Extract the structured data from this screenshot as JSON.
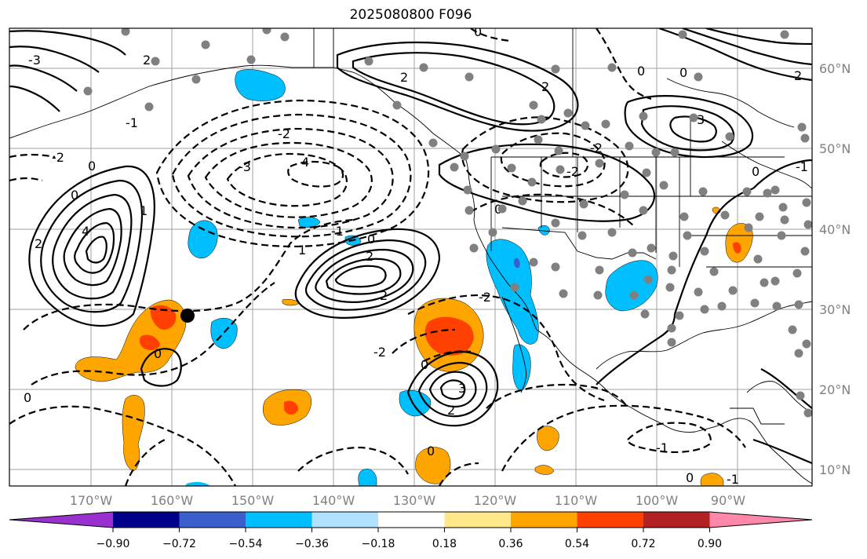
{
  "title": "2025080800 F096",
  "lat_labels": [
    "60°N",
    "50°N",
    "40°N",
    "30°N",
    "20°N",
    "10°N"
  ],
  "lon_labels": [
    "170°W",
    "160°W",
    "150°W",
    "140°W",
    "130°W",
    "120°W",
    "110°W",
    "100°W",
    "90°W"
  ],
  "colorbar": {
    "colors": [
      "#9b30d0",
      "#00008b",
      "#3a5fcd",
      "#00bfff",
      "#b0e2ff",
      "#ffffff",
      "#ffe88a",
      "#ffa500",
      "#ff4000",
      "#b22222",
      "#ff88aa"
    ],
    "ticks": [
      "−0.90",
      "−0.72",
      "−0.54",
      "−0.36",
      "−0.18",
      "0.18",
      "0.36",
      "0.54",
      "0.72",
      "0.90"
    ]
  },
  "contour_labels": [
    "-3",
    "-2",
    "-1",
    "0",
    "1",
    "2",
    "3",
    "4"
  ],
  "feature_colors": {
    "stations": "#808080",
    "marker": "#000000"
  }
}
